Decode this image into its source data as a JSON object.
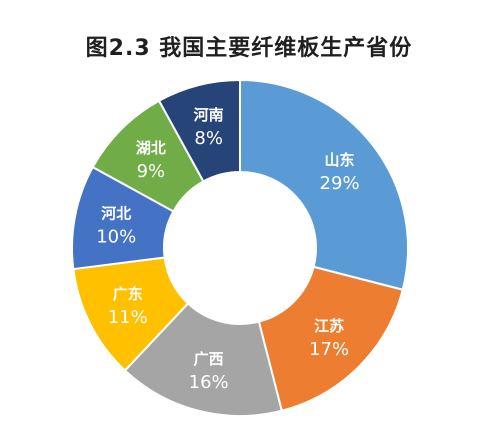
{
  "chart_data": {
    "type": "pie",
    "title": "图2.3  我国主要纤维板生产省份",
    "slices": [
      {
        "label": "山东",
        "value": 29,
        "display": "29%",
        "color": "#5b9bd5"
      },
      {
        "label": "江苏",
        "value": 17,
        "display": "17%",
        "color": "#ed7d31"
      },
      {
        "label": "广西",
        "value": 16,
        "display": "16%",
        "color": "#a5a5a5"
      },
      {
        "label": "广东",
        "value": 11,
        "display": "11%",
        "color": "#ffc000"
      },
      {
        "label": "河北",
        "value": 10,
        "display": "10%",
        "color": "#4472c4"
      },
      {
        "label": "湖北",
        "value": 9,
        "display": "9%",
        "color": "#70ad47"
      },
      {
        "label": "河南",
        "value": 8,
        "display": "8%",
        "color": "#264478"
      }
    ],
    "legend": "none",
    "style": "donut"
  }
}
